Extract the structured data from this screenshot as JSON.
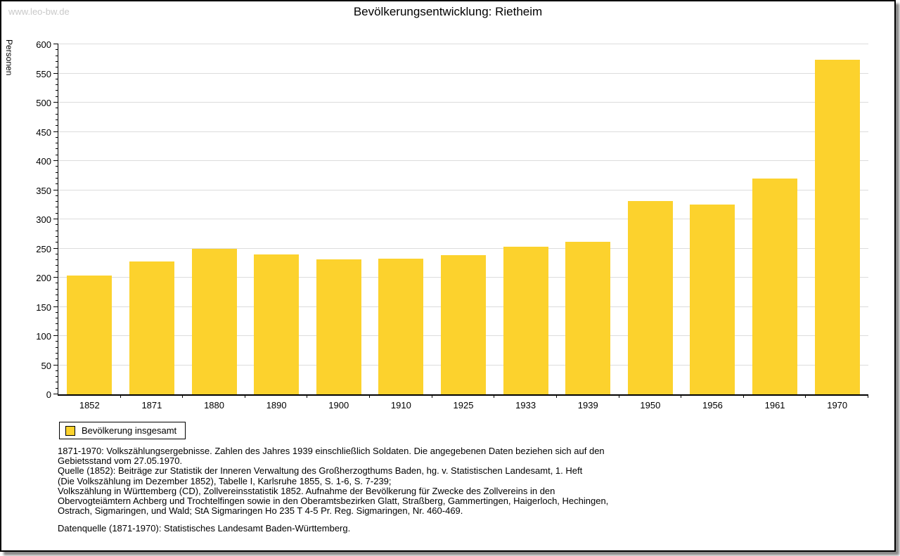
{
  "watermark": "www.leo-bw.de",
  "title": "Bevölkerungsentwicklung: Rietheim",
  "legend": {
    "label": "Bevölkerung insgesamt"
  },
  "colors": {
    "bar": "#FCD22D",
    "gridline": "#dcdcdc",
    "axis": "#000000",
    "watermark": "#c9c9c9"
  },
  "chart_data": {
    "type": "bar",
    "title": "Bevölkerungsentwicklung: Rietheim",
    "xlabel": "",
    "ylabel": "Personen",
    "series_name": "Bevölkerung insgesamt",
    "categories": [
      "1852",
      "1871",
      "1880",
      "1890",
      "1900",
      "1910",
      "1925",
      "1933",
      "1939",
      "1950",
      "1956",
      "1961",
      "1970"
    ],
    "values": [
      204,
      228,
      250,
      240,
      231,
      233,
      239,
      253,
      262,
      331,
      325,
      370,
      573
    ],
    "ylim": [
      0,
      600
    ],
    "yticks": [
      0,
      50,
      100,
      150,
      200,
      250,
      300,
      350,
      400,
      450,
      500,
      550,
      600
    ],
    "minor_tick_step": 10,
    "grid": true,
    "legend_position": "bottom-left",
    "bar_color": "#FCD22D"
  },
  "footer": {
    "lines": [
      "1871-1970: Volkszählungsergebnisse. Zahlen des Jahres 1939 einschließlich Soldaten. Die angegebenen Daten beziehen sich auf den",
      "Gebietsstand vom 27.05.1970.",
      "Quelle (1852): Beiträge zur Statistik der Inneren Verwaltung des Großherzogthums Baden, hg. v. Statistischen Landesamt, 1. Heft",
      "(Die Volkszählung im Dezember 1852), Tabelle I, Karlsruhe 1855, S. 1-6, S. 7-239;",
      "Volkszählung in Württemberg (CD), Zollvereinsstatistik 1852. Aufnahme der Bevölkerung für Zwecke des Zollvereins in den",
      "Obervogteiämtern Achberg und Trochtelfingen sowie in den Oberamtsbezirken Glatt, Straßberg, Gammertingen, Haigerloch, Hechingen,",
      "Ostrach, Sigmaringen, und Wald; StA Sigmaringen Ho 235 T 4-5 Pr. Reg. Sigmaringen, Nr. 460-469."
    ],
    "datasource": "Datenquelle (1871-1970): Statistisches Landesamt Baden-Württemberg."
  }
}
